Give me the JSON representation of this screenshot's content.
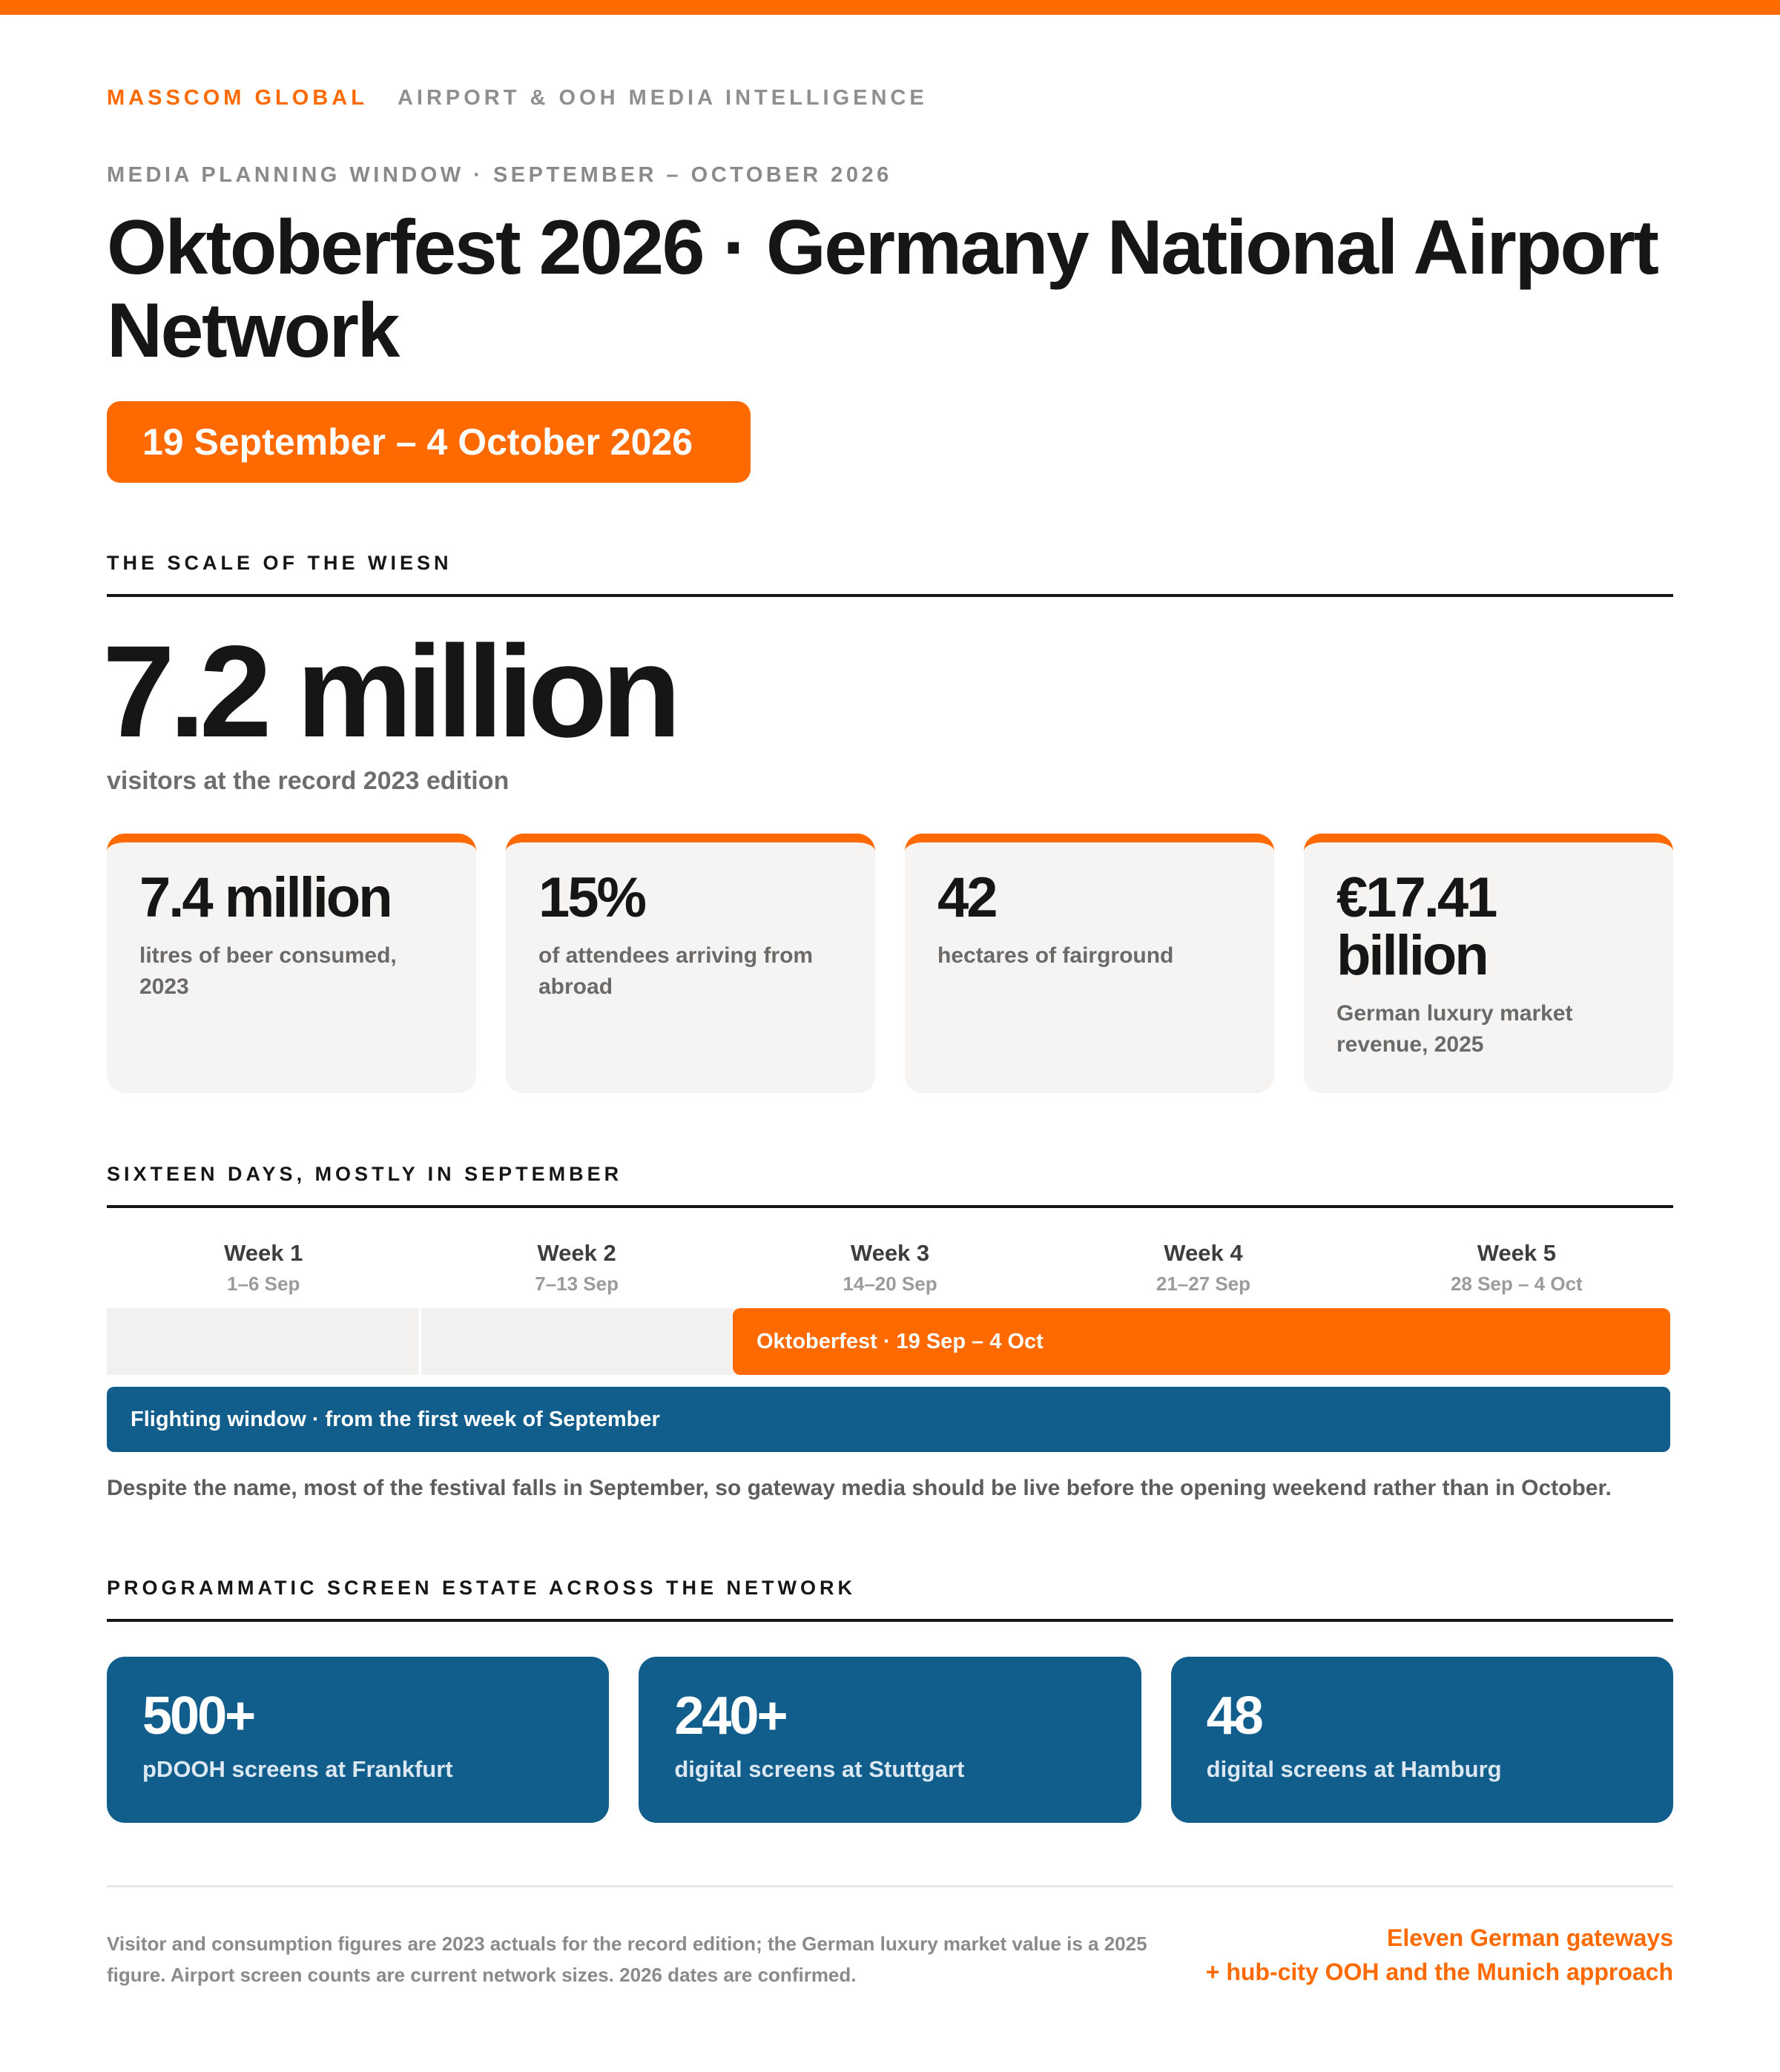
{
  "header": {
    "brand": "MASSCOM GLOBAL",
    "brand_sub": "AIRPORT & OOH MEDIA INTELLIGENCE",
    "eyebrow": "MEDIA PLANNING WINDOW · SEPTEMBER – OCTOBER 2026",
    "title": "Oktoberfest 2026 · Germany National Airport Network",
    "date_pill": "19 September – 4 October 2026"
  },
  "scale": {
    "heading": "THE SCALE OF THE WIESN",
    "hero_value": "7.2 million",
    "hero_caption": "visitors at the record 2023 edition",
    "stats": [
      {
        "value": "7.4 million",
        "label": "litres of beer consumed, 2023"
      },
      {
        "value": "15%",
        "label": "of attendees arriving from abroad"
      },
      {
        "value": "42",
        "label": "hectares of fairground"
      },
      {
        "value": "€17.41 billion",
        "label": "German luxury market revenue, 2025"
      }
    ]
  },
  "timeline": {
    "heading": "SIXTEEN DAYS, MOSTLY IN SEPTEMBER",
    "weeks": [
      {
        "name": "Week 1",
        "range": "1–6 Sep"
      },
      {
        "name": "Week 2",
        "range": "7–13 Sep"
      },
      {
        "name": "Week 3",
        "range": "14–20 Sep"
      },
      {
        "name": "Week 4",
        "range": "21–27 Sep"
      },
      {
        "name": "Week 5",
        "range": "28 Sep – 4 Oct"
      }
    ],
    "festival_bar": "Oktoberfest · 19 Sep – 4 Oct",
    "flighting_bar": "Flighting window · from the first week of September",
    "note": "Despite the name, most of the festival falls in September, so gateway media should be live before the opening weekend rather than in October.",
    "colors": {
      "festival": "#ff6a00",
      "flighting": "#115d8c"
    }
  },
  "screens": {
    "heading": "PROGRAMMATIC SCREEN ESTATE ACROSS THE NETWORK",
    "cards": [
      {
        "value": "500+",
        "label": "pDOOH screens at Frankfurt"
      },
      {
        "value": "240+",
        "label": "digital screens at Stuttgart"
      },
      {
        "value": "48",
        "label": "digital screens at Hamburg"
      }
    ]
  },
  "footer": {
    "note": "Visitor and consumption figures are 2023 actuals for the record edition; the German luxury market value is a 2025 figure. Airport screen counts are current network sizes. 2026 dates are confirmed.",
    "right_line1": "Eleven German gateways",
    "right_line2": "+ hub-city OOH and the Munich approach"
  },
  "colors": {
    "accent": "#ff6a00",
    "navy": "#115d8c",
    "ink": "#161616"
  }
}
